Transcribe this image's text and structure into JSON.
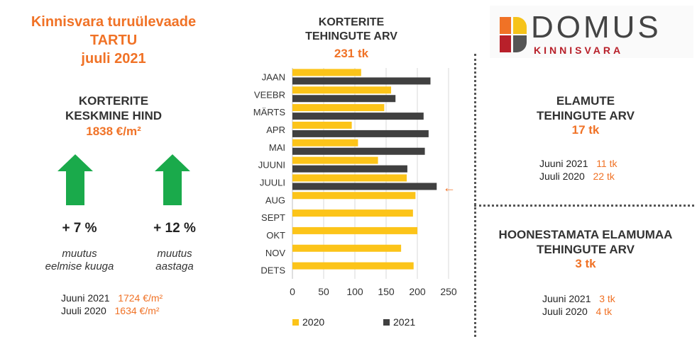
{
  "header": {
    "line1": "Kinnisvara turuülevaade",
    "line2": "TARTU",
    "line3": "juuli 2021"
  },
  "apartment_price": {
    "title_line1": "KORTERITE",
    "title_line2": "KESKMINE HIND",
    "value": "1838 €/m²",
    "change_month": {
      "value": "+ 7 %",
      "label_line1": "muutus",
      "label_line2": "eelmise kuuga"
    },
    "change_year": {
      "value": "+ 12 %",
      "label_line1": "muutus",
      "label_line2": "aastaga"
    },
    "comparisons": [
      {
        "label": "Juuni 2021",
        "value": "1724 €/m²"
      },
      {
        "label": "Juuli 2020",
        "value": "1634 €/m²"
      }
    ]
  },
  "apartment_deals": {
    "title_line1": "KORTERITE",
    "title_line2": "TEHINGUTE ARV",
    "value": "231 tk",
    "marker": "←"
  },
  "house_deals": {
    "title_line1": "ELAMUTE",
    "title_line2": "TEHINGUTE ARV",
    "value": "17 tk",
    "comparisons": [
      {
        "label": "Juuni 2021",
        "value": "11 tk"
      },
      {
        "label": "Juuli 2020",
        "value": "22 tk"
      }
    ]
  },
  "land_deals": {
    "title_line1": "HOONESTAMATA ELAMUMAA",
    "title_line2": "TEHINGUTE ARV",
    "value": "3 tk",
    "comparisons": [
      {
        "label": "Juuni 2021",
        "value": "3 tk"
      },
      {
        "label": "Juuli 2020",
        "value": "4 tk"
      }
    ]
  },
  "logo": {
    "name": "DOMUS",
    "subtitle": "KINNISVARA",
    "colors": {
      "orange": "#f07226",
      "yellow": "#f6c31a",
      "red": "#b8202a",
      "gray": "#555555"
    }
  },
  "colors": {
    "accent": "#f07226",
    "arrow_green": "#1aaa4b",
    "bar_2020": "#fcc419",
    "bar_2021": "#404040"
  },
  "chart_data": {
    "type": "bar",
    "orientation": "horizontal",
    "categories": [
      "JAAN",
      "VEEBR",
      "MÄRTS",
      "APR",
      "MAI",
      "JUUNI",
      "JUULI",
      "AUG",
      "SEPT",
      "OKT",
      "NOV",
      "DETS"
    ],
    "series": [
      {
        "name": "2020",
        "color": "#fcc419",
        "values": [
          110,
          158,
          147,
          95,
          105,
          137,
          183,
          197,
          193,
          200,
          174,
          194
        ]
      },
      {
        "name": "2021",
        "color": "#404040",
        "values": [
          221,
          165,
          210,
          218,
          212,
          184,
          231,
          null,
          null,
          null,
          null,
          null
        ]
      }
    ],
    "xticks": [
      0,
      50,
      100,
      150,
      200,
      250
    ],
    "xlim": [
      0,
      250
    ],
    "grid": "vertical",
    "legend": "bottom"
  }
}
